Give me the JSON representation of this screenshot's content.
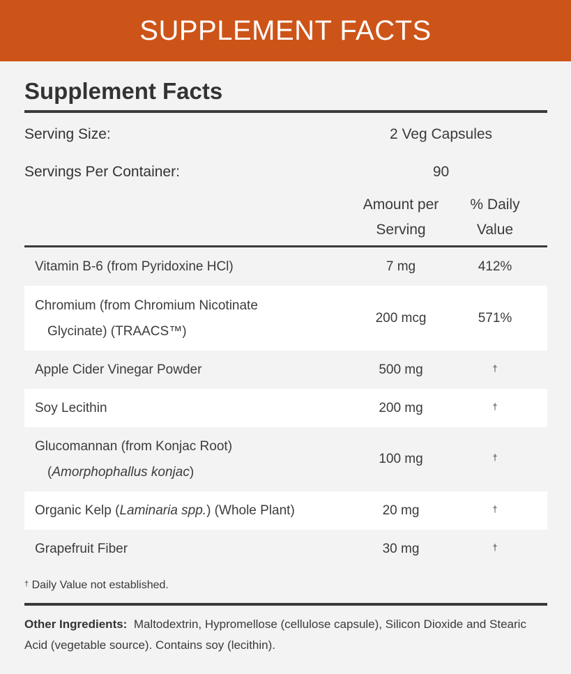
{
  "banner": {
    "title": "SUPPLEMENT FACTS"
  },
  "heading": "Supplement Facts",
  "serving": {
    "size_label": "Serving Size:",
    "size_value": "2 Veg Capsules",
    "per_container_label": "Servings Per Container:",
    "per_container_value": "90"
  },
  "columns": {
    "amount_line1": "Amount per",
    "amount_line2": "Serving",
    "dv_line1": "% Daily",
    "dv_line2": "Value"
  },
  "rows": [
    {
      "name1": "Vitamin B-6 (from Pyridoxine HCl)",
      "amount": "7 mg",
      "dv": "412%"
    },
    {
      "name1": "Chromium (from Chromium Nicotinate",
      "name2": "Glycinate) (TRAACS™)",
      "amount": "200 mcg",
      "dv": "571%"
    },
    {
      "name1": "Apple Cider Vinegar Powder",
      "amount": "500 mg",
      "dv": "†"
    },
    {
      "name1": "Soy Lecithin",
      "amount": "200 mg",
      "dv": "†"
    },
    {
      "name1": "Glucomannan (from Konjac Root)",
      "name2_italic": "Amorphophallus konjac",
      "amount": "100 mg",
      "dv": "†"
    },
    {
      "name_pre": "Organic Kelp (",
      "name_italic": "Laminaria spp.",
      "name_post": ") (Whole Plant)",
      "amount": "20 mg",
      "dv": "†"
    },
    {
      "name1": "Grapefruit Fiber",
      "amount": "30 mg",
      "dv": "†"
    }
  ],
  "footnote": {
    "mark": "†",
    "text": " Daily Value not established."
  },
  "other_ingredients": {
    "label": "Other Ingredients:",
    "text": "Maltodextrin, Hypromellose (cellulose capsule), Silicon Dioxide and Stearic Acid (vegetable source). Contains soy (lecithin)."
  }
}
